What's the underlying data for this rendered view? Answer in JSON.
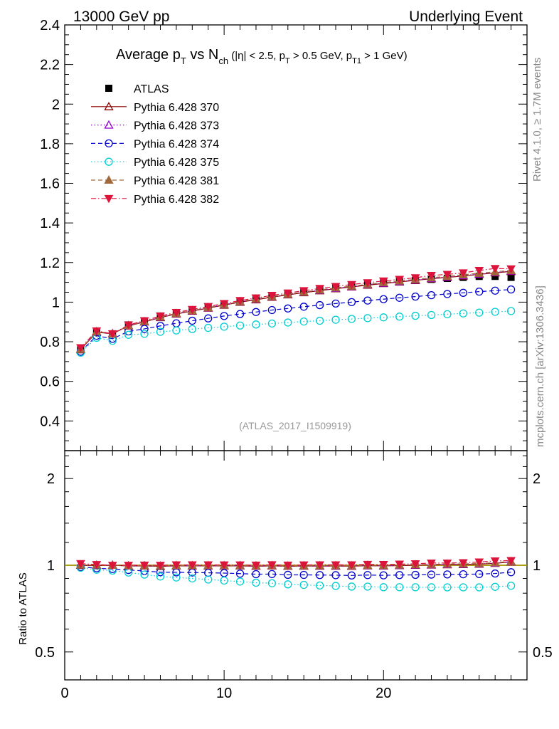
{
  "header": {
    "left": "13000 GeV pp",
    "right": "Underlying Event"
  },
  "title": {
    "main": "Average p",
    "main_sub": "T",
    "vs": " vs N",
    "vs_sub": "ch",
    "cut1": " (|η| < 2.5, p",
    "cut1_sub": "T",
    "cut2": " > 0.5 GeV, p",
    "cut2_sub": "T1",
    "cut3": " > 1 GeV)"
  },
  "side_labels": {
    "rivet": "Rivet 4.1.0, ≥ 1.7M events",
    "mcplots": "mcplots.cern.ch [arXiv:1306.3436]"
  },
  "analysis_label": "(ATLAS_2017_I1509919)",
  "ratio_ylabel": "Ratio to ATLAS",
  "chart_data": {
    "type": "line",
    "x": [
      1,
      2,
      3,
      4,
      5,
      6,
      7,
      8,
      9,
      10,
      11,
      12,
      13,
      14,
      15,
      16,
      17,
      18,
      19,
      20,
      21,
      22,
      23,
      24,
      25,
      26,
      27,
      28
    ],
    "main_ylim": [
      0.25,
      2.4
    ],
    "main_yticks": [
      0.4,
      0.6,
      0.8,
      1.0,
      1.2,
      1.4,
      1.6,
      1.8,
      2.0,
      2.2,
      2.4
    ],
    "main_ytick_labels": [
      "0.4",
      "0.6",
      "0.8",
      "1",
      "1.2",
      "1.4",
      "1.6",
      "1.8",
      "2",
      "2.2",
      "2.4"
    ],
    "xlim": [
      0,
      29
    ],
    "xticks": [
      0,
      10,
      20
    ],
    "xtick_labels": [
      "0",
      "10",
      "20"
    ],
    "ratio_ylim": [
      0.4,
      2.5
    ],
    "ratio_yticks": [
      0.5,
      1,
      2
    ],
    "ratio_ytick_labels": [
      "0.5",
      "1",
      "2"
    ],
    "series": [
      {
        "name": "ATLAS",
        "color": "#000000",
        "marker": "square-filled",
        "line": "none",
        "values": [
          0.76,
          0.85,
          0.84,
          0.885,
          0.905,
          0.93,
          0.945,
          0.96,
          0.975,
          0.99,
          1.005,
          1.02,
          1.03,
          1.045,
          1.055,
          1.065,
          1.075,
          1.085,
          1.09,
          1.1,
          1.105,
          1.11,
          1.115,
          1.12,
          1.125,
          1.13,
          1.13,
          1.125
        ]
      },
      {
        "name": "Pythia 6.428 370",
        "color": "#8b0000",
        "marker": "triangle-open",
        "line": "solid",
        "values": [
          0.76,
          0.848,
          0.84,
          0.88,
          0.9,
          0.922,
          0.94,
          0.955,
          0.97,
          0.985,
          1.0,
          1.012,
          1.025,
          1.037,
          1.048,
          1.058,
          1.068,
          1.077,
          1.086,
          1.094,
          1.102,
          1.11,
          1.118,
          1.125,
          1.132,
          1.14,
          1.148,
          1.155
        ]
      },
      {
        "name": "Pythia 6.428 373",
        "color": "#9400d3",
        "marker": "triangle-open",
        "line": "dotted",
        "values": [
          0.762,
          0.85,
          0.842,
          0.882,
          0.902,
          0.924,
          0.942,
          0.957,
          0.972,
          0.987,
          1.002,
          1.014,
          1.027,
          1.039,
          1.05,
          1.06,
          1.07,
          1.079,
          1.088,
          1.096,
          1.104,
          1.112,
          1.12,
          1.127,
          1.134,
          1.142,
          1.15,
          1.157
        ]
      },
      {
        "name": "Pythia 6.428 374",
        "color": "#0000cd",
        "marker": "circle-open",
        "line": "dashed",
        "values": [
          0.75,
          0.83,
          0.815,
          0.852,
          0.865,
          0.88,
          0.893,
          0.906,
          0.918,
          0.93,
          0.94,
          0.95,
          0.96,
          0.968,
          0.977,
          0.985,
          0.993,
          1.0,
          1.008,
          1.015,
          1.022,
          1.028,
          1.035,
          1.041,
          1.047,
          1.053,
          1.058,
          1.064
        ]
      },
      {
        "name": "Pythia 6.428 375",
        "color": "#00ced1",
        "marker": "circle-open",
        "line": "dotted",
        "values": [
          0.745,
          0.82,
          0.805,
          0.835,
          0.84,
          0.85,
          0.857,
          0.864,
          0.87,
          0.876,
          0.882,
          0.887,
          0.892,
          0.897,
          0.902,
          0.906,
          0.911,
          0.915,
          0.919,
          0.923,
          0.927,
          0.931,
          0.935,
          0.939,
          0.943,
          0.947,
          0.951,
          0.955
        ]
      },
      {
        "name": "Pythia 6.428 381",
        "color": "#a0693c",
        "marker": "triangle-filled",
        "line": "dashed",
        "values": [
          0.762,
          0.852,
          0.84,
          0.882,
          0.902,
          0.925,
          0.943,
          0.958,
          0.973,
          0.988,
          1.003,
          1.016,
          1.028,
          1.04,
          1.051,
          1.062,
          1.072,
          1.081,
          1.09,
          1.099,
          1.107,
          1.115,
          1.123,
          1.131,
          1.138,
          1.146,
          1.153,
          1.16
        ]
      },
      {
        "name": "Pythia 6.428 382",
        "color": "#dc143c",
        "marker": "triangle-down-filled",
        "line": "dashdot",
        "values": [
          0.77,
          0.855,
          0.84,
          0.885,
          0.906,
          0.93,
          0.948,
          0.963,
          0.978,
          0.993,
          1.008,
          1.021,
          1.034,
          1.046,
          1.058,
          1.069,
          1.079,
          1.089,
          1.098,
          1.107,
          1.115,
          1.123,
          1.135,
          1.14,
          1.148,
          1.16,
          1.17,
          1.168
        ]
      }
    ]
  }
}
